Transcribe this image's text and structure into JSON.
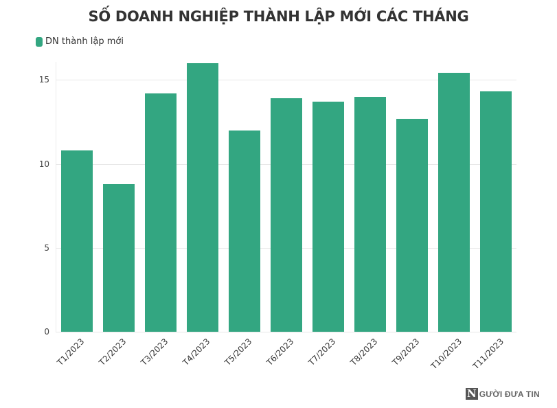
{
  "chart_data": {
    "type": "bar",
    "title": "SỐ DOANH NGHIỆP THÀNH LẬP MỚI CÁC THÁNG",
    "xlabel": "",
    "ylabel": "",
    "ylim": [
      0,
      16
    ],
    "yticks": [
      0,
      5,
      10,
      15
    ],
    "grid": true,
    "legend_position": "top-left",
    "categories": [
      "T1/2023",
      "T2/2023",
      "T3/2023",
      "T4/2023",
      "T5/2023",
      "T6/2023",
      "T7/2023",
      "T8/2023",
      "T9/2023",
      "T10/2023",
      "T11/2023"
    ],
    "series": [
      {
        "name": "DN thành lập mới",
        "color": "#33a681",
        "values": [
          10.8,
          8.8,
          14.2,
          16.0,
          12.0,
          13.9,
          13.7,
          14.0,
          12.7,
          15.4,
          14.3
        ]
      }
    ]
  },
  "watermark": {
    "logo_letter": "N",
    "text": "GƯỜI ĐƯA TIN"
  }
}
